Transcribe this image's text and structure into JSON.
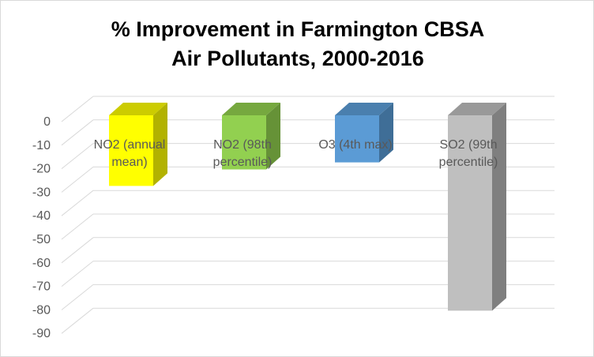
{
  "chart_data": {
    "type": "bar",
    "title_lines": [
      "% Improvement in Farmington CBSA",
      "Air Pollutants, 2000-2016"
    ],
    "categories": [
      [
        "NO2 (annual",
        "mean)"
      ],
      [
        "NO2 (98th",
        "percentile)"
      ],
      [
        "O3 (4th max)"
      ],
      [
        "SO2 (99th",
        "percentile)"
      ]
    ],
    "values": [
      -30,
      -23,
      -20,
      -83
    ],
    "colors": [
      {
        "front": "#ffff00",
        "side": "#b2b200",
        "top": "#cccc00"
      },
      {
        "front": "#92d050",
        "side": "#669237",
        "top": "#76a83f"
      },
      {
        "front": "#5b9bd5",
        "side": "#3f6e97",
        "top": "#4a7fae"
      },
      {
        "front": "#bfbfbf",
        "side": "#7f7f7f",
        "top": "#999999"
      }
    ],
    "yticks": [
      0,
      -10,
      -20,
      -30,
      -40,
      -50,
      -60,
      -70,
      -80,
      -90
    ],
    "ylim": [
      -90,
      0
    ],
    "grid": true
  }
}
